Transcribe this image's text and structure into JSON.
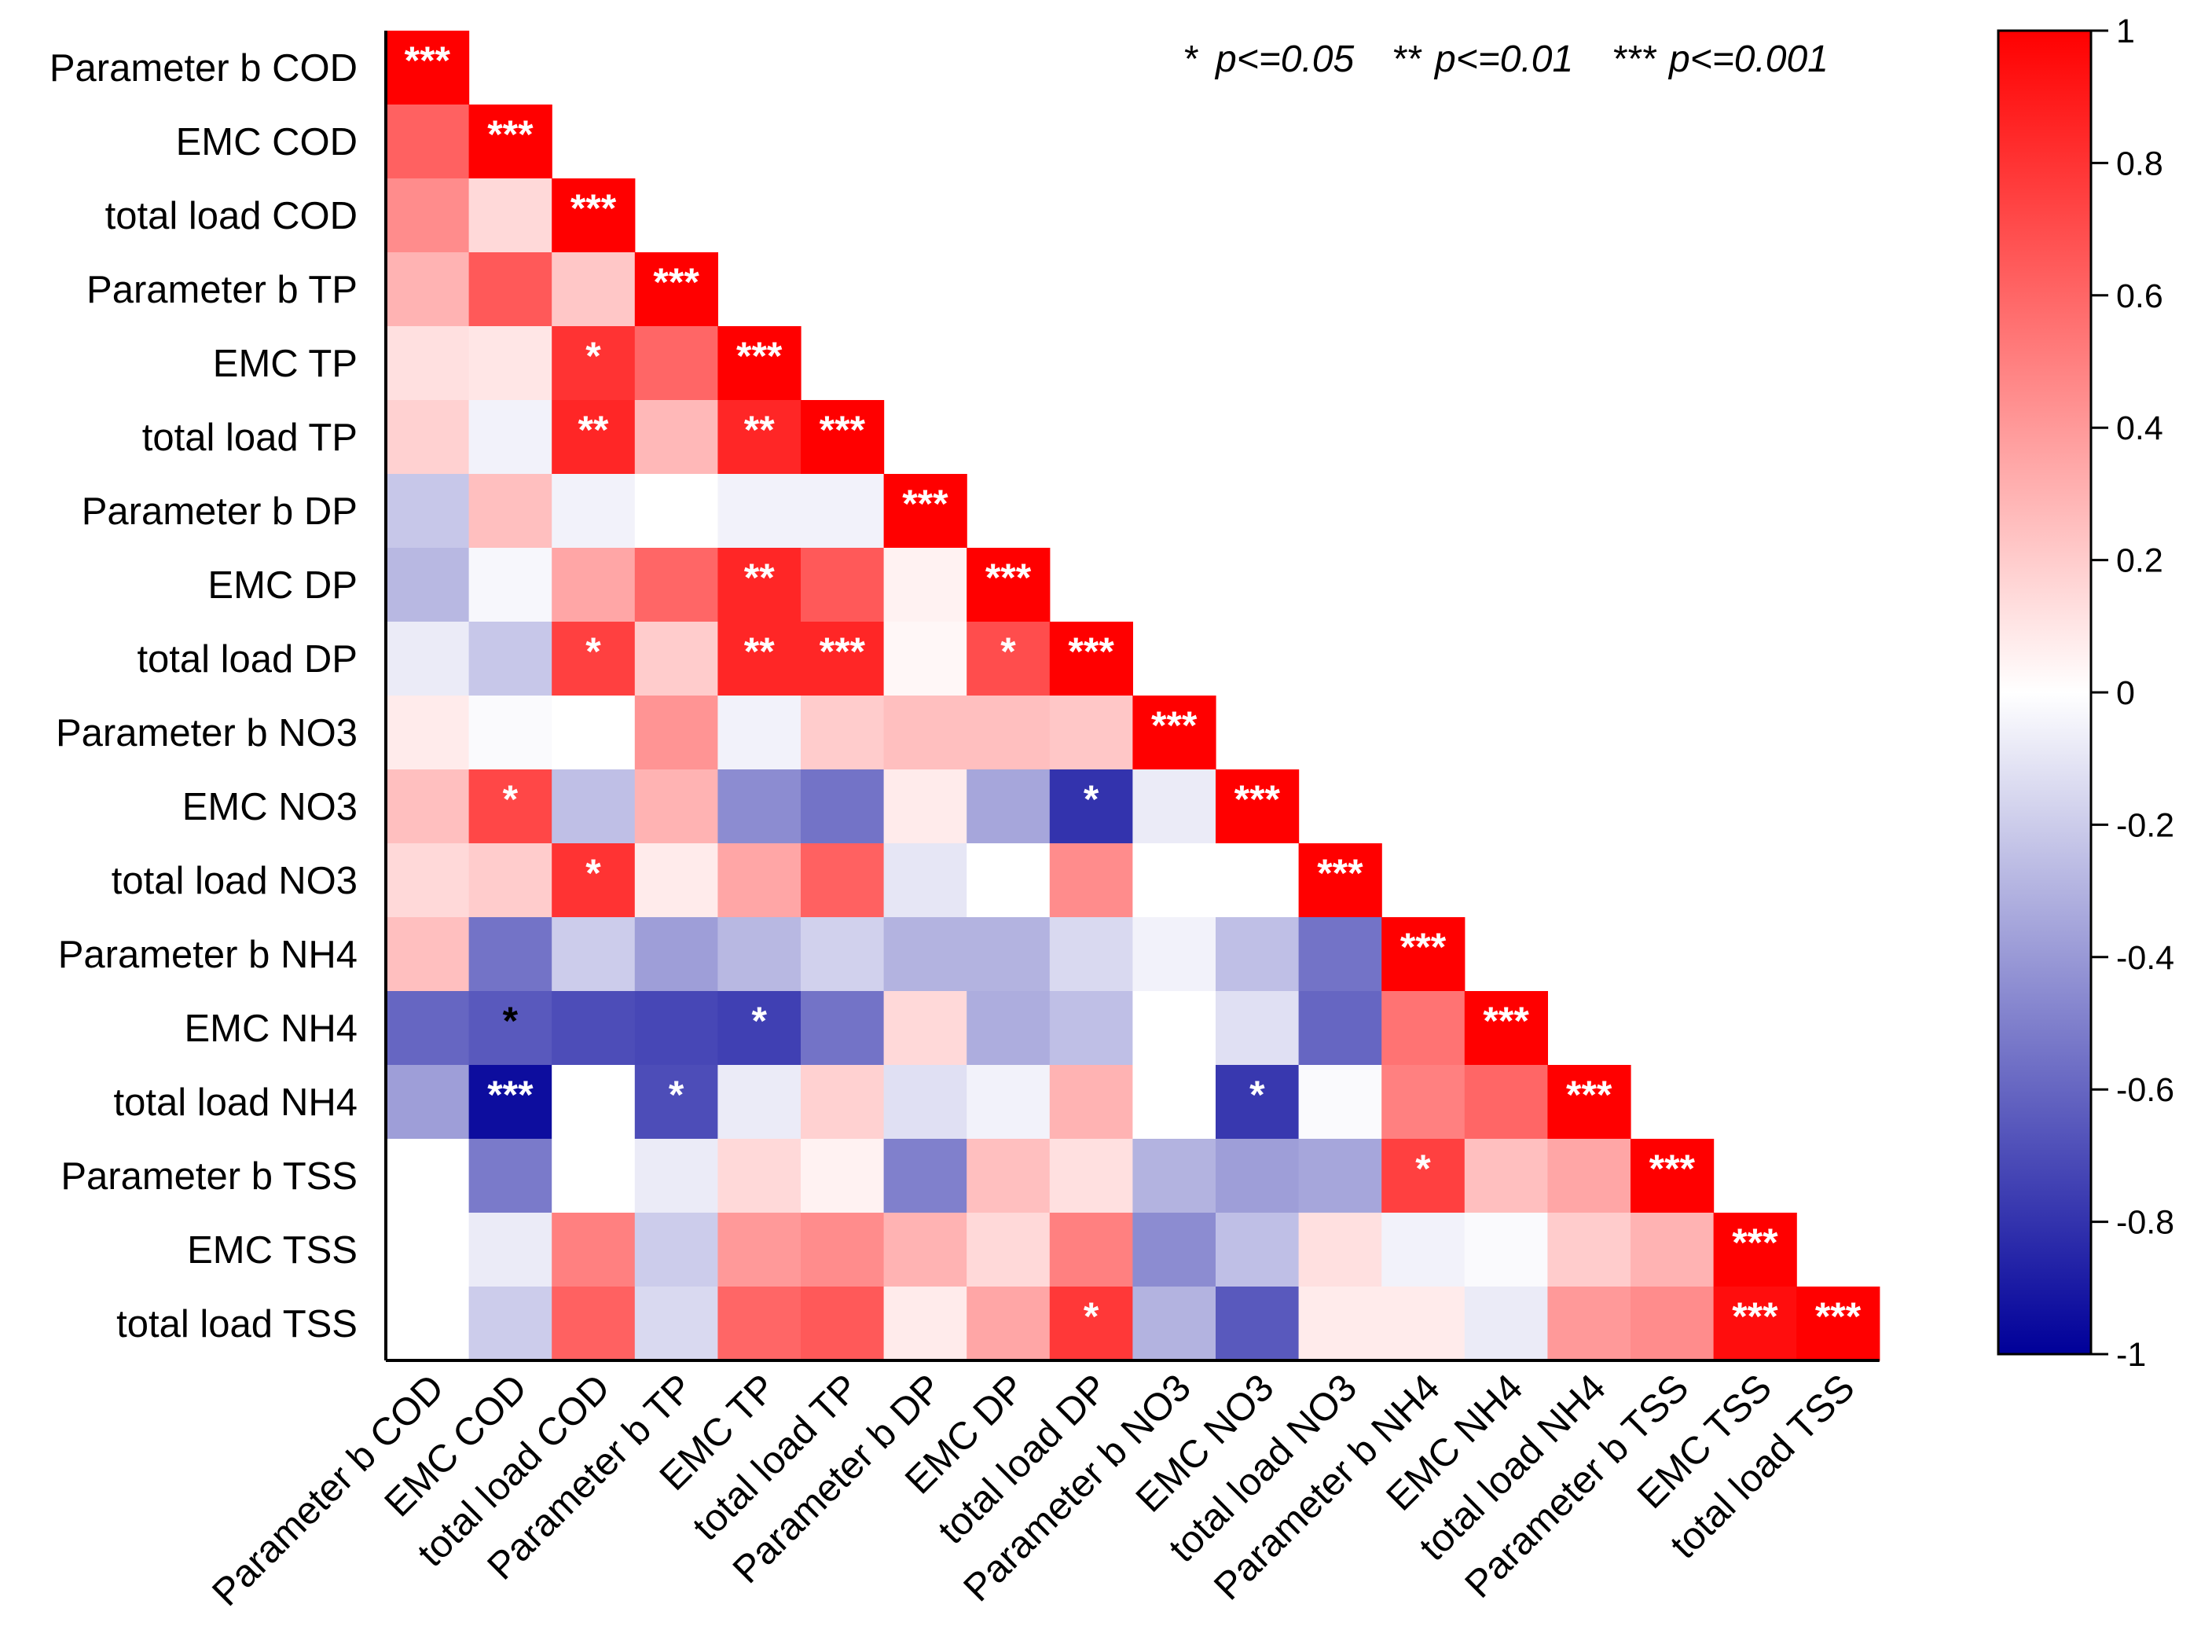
{
  "chart_data": {
    "type": "heatmap",
    "variant": "lower-triangular correlation matrix",
    "labels": [
      "Parameter b COD",
      "EMC COD",
      "total load COD",
      "Parameter b TP",
      "EMC TP",
      "total load TP",
      "Parameter b DP",
      "EMC DP",
      "total load DP",
      "Parameter b NO3",
      "EMC NO3",
      "total load NO3",
      "Parameter b NH4",
      "EMC NH4",
      "total load NH4",
      "Parameter b TSS",
      "EMC TSS",
      "total load TSS"
    ],
    "matrix": [
      [
        1.0
      ],
      [
        0.62,
        1.0
      ],
      [
        0.45,
        0.15,
        1.0
      ],
      [
        0.3,
        0.65,
        0.22,
        1.0
      ],
      [
        0.12,
        0.1,
        0.8,
        0.6,
        1.0
      ],
      [
        0.18,
        -0.05,
        0.85,
        0.28,
        0.85,
        1.0
      ],
      [
        -0.22,
        0.25,
        -0.05,
        0.0,
        -0.05,
        -0.05,
        1.0
      ],
      [
        -0.28,
        -0.03,
        0.35,
        0.6,
        0.85,
        0.65,
        0.05,
        1.0
      ],
      [
        -0.08,
        -0.22,
        0.75,
        0.2,
        0.85,
        0.85,
        0.03,
        0.7,
        1.0
      ],
      [
        0.08,
        -0.02,
        0.0,
        0.42,
        -0.05,
        0.2,
        0.25,
        0.25,
        0.22,
        1.0
      ],
      [
        0.25,
        0.72,
        -0.25,
        0.3,
        -0.45,
        -0.55,
        0.08,
        -0.35,
        -0.8,
        -0.08,
        1.0
      ],
      [
        0.15,
        0.2,
        0.8,
        0.08,
        0.35,
        0.62,
        -0.1,
        0.0,
        0.45,
        0.0,
        0.0,
        1.0
      ],
      [
        0.25,
        -0.55,
        -0.2,
        -0.38,
        -0.28,
        -0.18,
        -0.3,
        -0.3,
        -0.15,
        -0.05,
        -0.25,
        -0.55,
        1.0
      ],
      [
        -0.6,
        -0.65,
        -0.7,
        -0.72,
        -0.75,
        -0.55,
        0.15,
        -0.32,
        -0.25,
        0.0,
        -0.12,
        -0.6,
        0.55,
        1.0
      ],
      [
        -0.38,
        -0.95,
        0.0,
        -0.7,
        -0.08,
        0.18,
        -0.12,
        -0.05,
        0.3,
        0.0,
        -0.78,
        -0.02,
        0.5,
        0.6,
        1.0
      ],
      [
        0.0,
        -0.52,
        0.0,
        -0.08,
        0.15,
        0.05,
        -0.5,
        0.25,
        0.12,
        -0.3,
        -0.38,
        -0.35,
        0.75,
        0.25,
        0.35,
        1.0
      ],
      [
        0.0,
        -0.08,
        0.5,
        -0.2,
        0.4,
        0.45,
        0.3,
        0.15,
        0.5,
        -0.45,
        -0.25,
        0.12,
        -0.05,
        -0.02,
        0.2,
        0.3,
        1.0
      ],
      [
        0.0,
        -0.2,
        0.62,
        -0.15,
        0.6,
        0.65,
        0.08,
        0.35,
        0.78,
        -0.3,
        -0.65,
        0.08,
        0.08,
        -0.08,
        0.4,
        0.45,
        0.95,
        1.0
      ]
    ],
    "significance": [
      [
        "***"
      ],
      [
        "",
        "***"
      ],
      [
        "",
        "",
        "***"
      ],
      [
        "",
        "",
        "",
        "***"
      ],
      [
        "",
        "",
        "*",
        "",
        "***"
      ],
      [
        "",
        "",
        "**",
        "",
        "**",
        "***"
      ],
      [
        "",
        "",
        "",
        "",
        "",
        "",
        "***"
      ],
      [
        "",
        "",
        "",
        "",
        "**",
        "",
        "",
        "***"
      ],
      [
        "",
        "",
        "*",
        "",
        "**",
        "***",
        "",
        "*",
        "***"
      ],
      [
        "",
        "",
        "",
        "",
        "",
        "",
        "",
        "",
        "",
        "***"
      ],
      [
        "",
        "*",
        "",
        "",
        "",
        "",
        "",
        "",
        "*",
        "",
        "***"
      ],
      [
        "",
        "",
        "*",
        "",
        "",
        "",
        "",
        "",
        "",
        "",
        "",
        "***"
      ],
      [
        "",
        "",
        "",
        "",
        "",
        "",
        "",
        "",
        "",
        "",
        "",
        "",
        "***"
      ],
      [
        "",
        "*",
        "",
        "",
        "*",
        "",
        "",
        "",
        "",
        "",
        "",
        "",
        "",
        "***"
      ],
      [
        "",
        "***",
        "",
        "*",
        "",
        "",
        "",
        "",
        "",
        "",
        "*",
        "",
        "",
        "",
        "***"
      ],
      [
        "",
        "",
        "",
        "",
        "",
        "",
        "",
        "",
        "",
        "",
        "",
        "",
        "*",
        "",
        "",
        "***"
      ],
      [
        "",
        "",
        "",
        "",
        "",
        "",
        "",
        "",
        "",
        "",
        "",
        "",
        "",
        "",
        "",
        "",
        "***"
      ],
      [
        "",
        "",
        "",
        "",
        "",
        "",
        "",
        "",
        "*",
        "",
        "",
        "",
        "",
        "",
        "",
        "",
        "***",
        "***"
      ]
    ],
    "colorbar": {
      "range": [
        -1,
        1
      ],
      "ticks": [
        "1",
        "0.8",
        "0.6",
        "0.4",
        "0.2",
        "0",
        "-0.2",
        "-0.4",
        "-0.6",
        "-0.8",
        "-1"
      ],
      "colors": {
        "high": "#ff0000",
        "mid": "#ffffff",
        "low": "#000099"
      }
    },
    "significance_legend": {
      "items": [
        {
          "stars": "*",
          "threshold": "p<=0.05"
        },
        {
          "stars": "**",
          "threshold": "p<=0.01"
        },
        {
          "stars": "***",
          "threshold": "p<=0.001"
        }
      ]
    }
  }
}
